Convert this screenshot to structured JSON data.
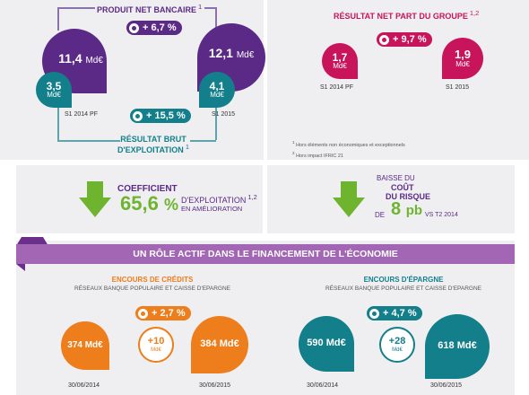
{
  "pnb": {
    "title": "PRODUIT NET BANCAIRE",
    "note_ref": "1",
    "growth": "+ 6,7 %",
    "left_big": "11,4",
    "left_big_unit": "Md€",
    "left_small": "3,5",
    "left_small_unit": "Md€",
    "right_big": "12,1",
    "right_big_unit": "Md€",
    "right_small": "4,1",
    "right_small_unit": "Md€",
    "left_period": "S1 2014 PF",
    "right_period": "S1 2015"
  },
  "rbe": {
    "growth": "+ 15,5 %",
    "title_line1": "RÉSULTAT BRUT",
    "title_line2": "D'EXPLOITATION",
    "note_ref": "1"
  },
  "rnpg": {
    "title": "RÉSULTAT NET PART DU GROUPE",
    "note_ref": "1,2",
    "growth": "+ 9,7 %",
    "left_value": "1,7",
    "left_unit": "Md€",
    "right_value": "1,9",
    "right_unit": "Md€",
    "left_period": "S1 2014 PF",
    "right_period": "S1 2015"
  },
  "notes": {
    "note1": "Hors éléments non économiques et exceptionnels",
    "note2": "Hors impact IFRIC 21",
    "ref1": "1",
    "ref2": "2"
  },
  "coefficient": {
    "line1": "COEFFICIENT",
    "value": "65,6",
    "percent": "%",
    "line2": "D'EXPLOITATION",
    "note_ref": "1,2",
    "line3": "EN AMÉLIORATION"
  },
  "risk": {
    "line1": "BAISSE DU",
    "line2": "COÛT",
    "line3": "DU RISQUE",
    "prefix": "DE",
    "value": "8",
    "unit": "pb",
    "suffix": "VS T2 2014"
  },
  "banner": {
    "title": "UN RÔLE ACTIF DANS LE FINANCEMENT DE L'ÉCONOMIE"
  },
  "credits": {
    "title": "ENCOURS DE CRÉDITS",
    "subtitle": "RÉSEAUX BANQUE POPULAIRE ET CAISSE D'EPARGNE",
    "growth": "+ 2,7 %",
    "left_value": "374 Md€",
    "mid_value": "+10",
    "mid_unit": "Md€",
    "right_value": "384 Md€",
    "left_date": "30/06/2014",
    "right_date": "30/06/2015"
  },
  "epargne": {
    "title": "ENCOURS D'ÉPARGNE",
    "subtitle": "RÉSEAUX BANQUE POPULAIRE ET CAISSE D'EPARGNE",
    "growth": "+ 4,7 %",
    "left_value": "590 Md€",
    "mid_value": "+28",
    "mid_unit": "Md€",
    "right_value": "618 Md€",
    "left_date": "30/06/2014",
    "right_date": "30/06/2015"
  },
  "colors": {
    "purple": "#5b2a86",
    "teal": "#127f8a",
    "pink": "#c7145a",
    "orange": "#ee7d1b",
    "green": "#6fb42f",
    "banner": "#a266b4"
  }
}
